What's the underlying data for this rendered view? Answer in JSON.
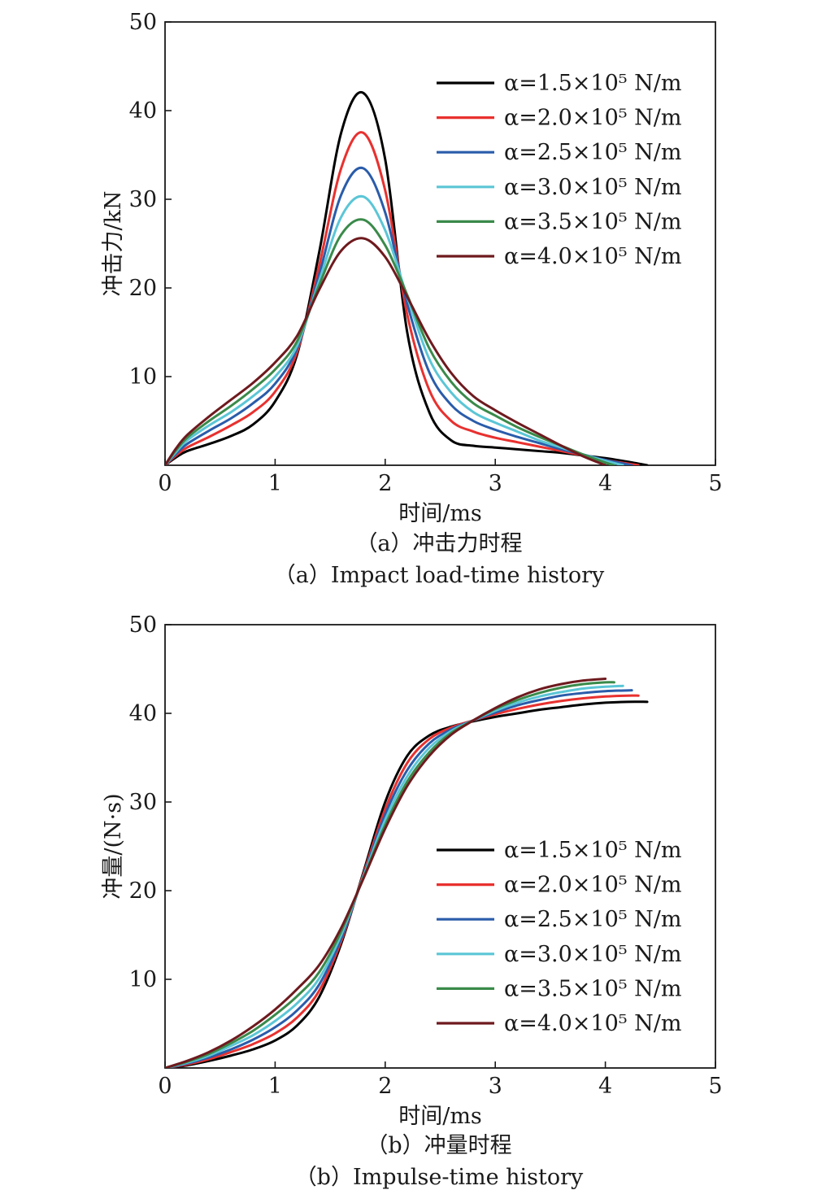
{
  "chart_data": [
    {
      "type": "line",
      "xlabel": "时间/ms",
      "ylabel": "冲击力/kN",
      "caption_cn": "（a）冲击力时程",
      "caption_en": "（a）Impact load-time history",
      "xlim": [
        0,
        5
      ],
      "ylim": [
        0,
        50
      ],
      "xticks": [
        "0",
        "1",
        "2",
        "3",
        "4",
        "5"
      ],
      "yticks": [
        "10",
        "20",
        "30",
        "40",
        "50"
      ],
      "legend_position": "top-right",
      "series": [
        {
          "name": "α=1.5×10⁵ N/m",
          "color": "#000000",
          "x": [
            0,
            0.1,
            0.2,
            0.4,
            0.6,
            0.8,
            1.0,
            1.2,
            1.4,
            1.6,
            1.8,
            2.0,
            2.2,
            2.4,
            2.6,
            2.8,
            3.0,
            3.2,
            3.4,
            3.6,
            3.8,
            4.0,
            4.2,
            4.38
          ],
          "y": [
            0,
            0.9,
            1.6,
            2.4,
            3.3,
            4.6,
            7.2,
            12.5,
            24.0,
            37.5,
            42.0,
            34.5,
            15.0,
            6.0,
            2.8,
            2.2,
            2.0,
            1.8,
            1.6,
            1.4,
            1.1,
            0.8,
            0.4,
            0.0
          ]
        },
        {
          "name": "α=2.0×10⁵ N/m",
          "color": "#e8312f",
          "x": [
            0,
            0.1,
            0.2,
            0.4,
            0.6,
            0.8,
            1.0,
            1.2,
            1.4,
            1.6,
            1.8,
            2.0,
            2.2,
            2.4,
            2.6,
            2.8,
            3.0,
            3.2,
            3.4,
            3.6,
            3.8,
            4.0,
            4.2,
            4.3
          ],
          "y": [
            0,
            1.1,
            2.0,
            3.2,
            4.5,
            6.0,
            8.3,
            12.8,
            22.5,
            33.5,
            37.5,
            31.0,
            17.0,
            8.5,
            5.0,
            3.8,
            3.1,
            2.6,
            2.1,
            1.6,
            1.1,
            0.6,
            0.2,
            0.0
          ]
        },
        {
          "name": "α=2.5×10⁵ N/m",
          "color": "#2a5caa",
          "x": [
            0,
            0.1,
            0.2,
            0.4,
            0.6,
            0.8,
            1.0,
            1.2,
            1.4,
            1.6,
            1.8,
            2.0,
            2.2,
            2.4,
            2.6,
            2.8,
            3.0,
            3.2,
            3.4,
            3.6,
            3.8,
            4.0,
            4.2,
            4.24
          ],
          "y": [
            0,
            1.3,
            2.4,
            3.9,
            5.3,
            7.0,
            9.2,
            13.2,
            21.5,
            30.5,
            33.5,
            28.5,
            18.2,
            10.5,
            6.8,
            5.0,
            4.0,
            3.2,
            2.5,
            1.8,
            1.2,
            0.6,
            0.1,
            0.0
          ]
        },
        {
          "name": "α=3.0×10⁵ N/m",
          "color": "#5bc6d6",
          "x": [
            0,
            0.1,
            0.2,
            0.4,
            0.6,
            0.8,
            1.0,
            1.2,
            1.4,
            1.6,
            1.8,
            2.0,
            2.2,
            2.4,
            2.6,
            2.8,
            3.0,
            3.2,
            3.4,
            3.6,
            3.8,
            4.0,
            4.16
          ],
          "y": [
            0,
            1.5,
            2.8,
            4.5,
            6.0,
            7.8,
            10.0,
            13.5,
            20.8,
            28.0,
            30.3,
            26.5,
            19.0,
            12.0,
            8.2,
            6.0,
            4.8,
            3.8,
            2.8,
            2.0,
            1.2,
            0.5,
            0.0
          ]
        },
        {
          "name": "α=3.5×10⁵ N/m",
          "color": "#3a8a4a",
          "x": [
            0,
            0.1,
            0.2,
            0.4,
            0.6,
            0.8,
            1.0,
            1.2,
            1.4,
            1.6,
            1.8,
            2.0,
            2.2,
            2.4,
            2.6,
            2.8,
            3.0,
            3.2,
            3.4,
            3.6,
            3.8,
            4.0,
            4.08
          ],
          "y": [
            0,
            1.7,
            3.1,
            5.0,
            6.7,
            8.6,
            10.8,
            14.0,
            20.3,
            26.0,
            27.7,
            24.8,
            19.2,
            13.2,
            9.4,
            7.0,
            5.6,
            4.3,
            3.2,
            2.2,
            1.2,
            0.3,
            0.0
          ]
        },
        {
          "name": "α=4.0×10⁵ N/m",
          "color": "#6e1a1e",
          "x": [
            0,
            0.1,
            0.2,
            0.4,
            0.6,
            0.8,
            1.0,
            1.2,
            1.4,
            1.6,
            1.8,
            2.0,
            2.2,
            2.4,
            2.6,
            2.8,
            3.0,
            3.2,
            3.4,
            3.6,
            3.8,
            4.0
          ],
          "y": [
            0,
            1.9,
            3.4,
            5.5,
            7.4,
            9.3,
            11.6,
            14.6,
            19.8,
            24.2,
            25.6,
            23.5,
            19.0,
            14.2,
            10.4,
            7.8,
            6.2,
            4.8,
            3.5,
            2.2,
            1.0,
            0.0
          ]
        }
      ]
    },
    {
      "type": "line",
      "xlabel": "时间/ms",
      "ylabel": "冲量/(N·s)",
      "caption_cn": "（b）冲量时程",
      "caption_en": "（b）Impulse-time history",
      "xlim": [
        0,
        5
      ],
      "ylim": [
        0,
        50
      ],
      "xticks": [
        "0",
        "1",
        "2",
        "3",
        "4",
        "5"
      ],
      "yticks": [
        "10",
        "20",
        "30",
        "40",
        "50"
      ],
      "legend_position": "center-right",
      "series": [
        {
          "name": "α=1.5×10⁵ N/m",
          "color": "#000000",
          "x": [
            0,
            0.2,
            0.4,
            0.6,
            0.8,
            1.0,
            1.2,
            1.4,
            1.6,
            1.8,
            2.0,
            2.2,
            2.4,
            2.6,
            2.8,
            3.0,
            3.2,
            3.4,
            3.6,
            3.8,
            4.0,
            4.2,
            4.38
          ],
          "y": [
            0,
            0.3,
            0.8,
            1.4,
            2.1,
            3.1,
            4.8,
            8.0,
            14.0,
            22.0,
            30.0,
            35.2,
            37.5,
            38.5,
            39.1,
            39.6,
            40.0,
            40.4,
            40.7,
            41.0,
            41.2,
            41.3,
            41.3
          ]
        },
        {
          "name": "α=2.0×10⁵ N/m",
          "color": "#e8312f",
          "x": [
            0,
            0.2,
            0.4,
            0.6,
            0.8,
            1.0,
            1.2,
            1.4,
            1.6,
            1.8,
            2.0,
            2.2,
            2.4,
            2.6,
            2.8,
            3.0,
            3.2,
            3.4,
            3.6,
            3.8,
            4.0,
            4.2,
            4.3
          ],
          "y": [
            0,
            0.4,
            1.0,
            1.8,
            2.7,
            3.9,
            5.7,
            8.7,
            14.3,
            21.8,
            29.2,
            34.4,
            37.1,
            38.4,
            39.2,
            39.9,
            40.5,
            41.0,
            41.4,
            41.7,
            41.9,
            42.0,
            42.0
          ]
        },
        {
          "name": "α=2.5×10⁵ N/m",
          "color": "#2a5caa",
          "x": [
            0,
            0.2,
            0.4,
            0.6,
            0.8,
            1.0,
            1.2,
            1.4,
            1.6,
            1.8,
            2.0,
            2.2,
            2.4,
            2.6,
            2.8,
            3.0,
            3.2,
            3.4,
            3.6,
            3.8,
            4.0,
            4.24
          ],
          "y": [
            0,
            0.5,
            1.2,
            2.1,
            3.2,
            4.6,
            6.5,
            9.4,
            14.6,
            21.6,
            28.6,
            33.6,
            36.6,
            38.2,
            39.2,
            40.1,
            40.9,
            41.5,
            42.0,
            42.3,
            42.5,
            42.6
          ]
        },
        {
          "name": "α=3.0×10⁵ N/m",
          "color": "#5bc6d6",
          "x": [
            0,
            0.2,
            0.4,
            0.6,
            0.8,
            1.0,
            1.2,
            1.4,
            1.6,
            1.8,
            2.0,
            2.2,
            2.4,
            2.6,
            2.8,
            3.0,
            3.2,
            3.4,
            3.6,
            3.8,
            4.0,
            4.16
          ],
          "y": [
            0,
            0.6,
            1.4,
            2.5,
            3.7,
            5.3,
            7.3,
            10.1,
            15.0,
            21.5,
            28.0,
            32.9,
            36.1,
            38.0,
            39.2,
            40.3,
            41.2,
            41.9,
            42.4,
            42.8,
            43.0,
            43.1
          ]
        },
        {
          "name": "α=3.5×10⁵ N/m",
          "color": "#3a8a4a",
          "x": [
            0,
            0.2,
            0.4,
            0.6,
            0.8,
            1.0,
            1.2,
            1.4,
            1.6,
            1.8,
            2.0,
            2.2,
            2.4,
            2.6,
            2.8,
            3.0,
            3.2,
            3.4,
            3.6,
            3.8,
            4.0,
            4.08
          ],
          "y": [
            0,
            0.7,
            1.6,
            2.8,
            4.2,
            6.0,
            8.1,
            10.8,
            15.4,
            21.4,
            27.4,
            32.3,
            35.6,
            37.8,
            39.2,
            40.5,
            41.5,
            42.3,
            42.9,
            43.3,
            43.5,
            43.5
          ]
        },
        {
          "name": "α=4.0×10⁵ N/m",
          "color": "#6e1a1e",
          "x": [
            0,
            0.2,
            0.4,
            0.6,
            0.8,
            1.0,
            1.2,
            1.4,
            1.6,
            1.8,
            2.0,
            2.2,
            2.4,
            2.6,
            2.8,
            3.0,
            3.2,
            3.4,
            3.6,
            3.8,
            4.0
          ],
          "y": [
            0,
            0.8,
            1.8,
            3.1,
            4.7,
            6.6,
            8.9,
            11.6,
            15.8,
            21.3,
            27.0,
            31.8,
            35.2,
            37.6,
            39.2,
            40.6,
            41.8,
            42.7,
            43.3,
            43.7,
            43.9
          ]
        }
      ]
    }
  ]
}
